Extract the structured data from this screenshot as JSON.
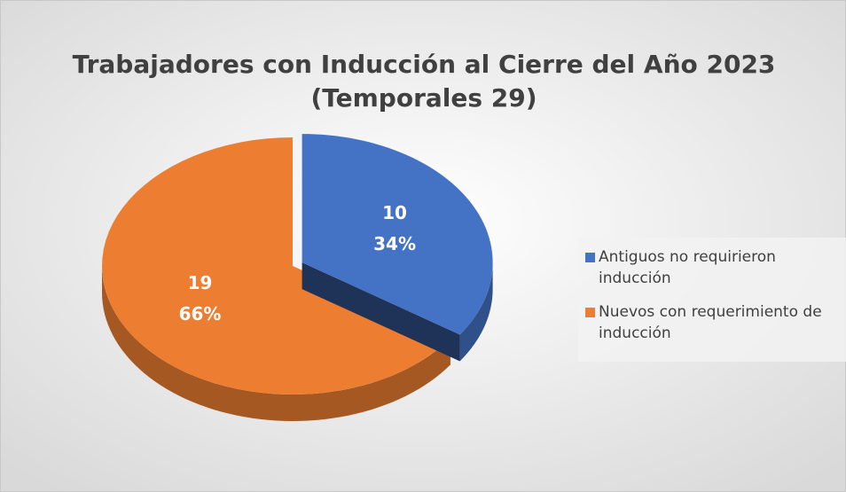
{
  "chart_data": {
    "type": "pie",
    "title": "Trabajadores con Inducción al Cierre del Año 2023",
    "subtitle": "(Temporales 29)",
    "categories": [
      "Antiguos no requirieron inducción",
      "Nuevos con requerimiento de inducción"
    ],
    "values": [
      10,
      19
    ],
    "percent_labels": [
      "34%",
      "66%"
    ],
    "colors": [
      "#4472c4",
      "#ed7d31"
    ],
    "legend": "right"
  }
}
